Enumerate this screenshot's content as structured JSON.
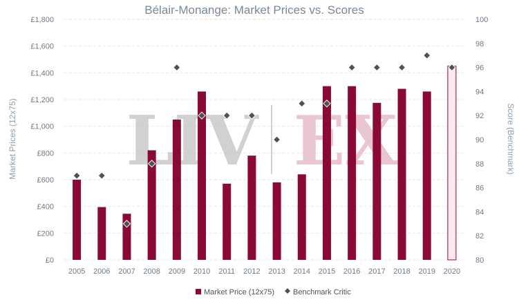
{
  "chart_data": {
    "type": "bar",
    "title": "Bélair-Monange: Market Prices vs. Scores",
    "categories": [
      "2005",
      "2006",
      "2007",
      "2008",
      "2009",
      "2010",
      "2011",
      "2012",
      "2013",
      "2014",
      "2015",
      "2016",
      "2017",
      "2018",
      "2019",
      "2020"
    ],
    "series": [
      {
        "name": "Market Price (12x75)",
        "kind": "bar",
        "axis": "left",
        "values": [
          600,
          395,
          345,
          820,
          1050,
          1260,
          570,
          780,
          580,
          640,
          1300,
          1300,
          1175,
          1280,
          1260,
          1450
        ]
      },
      {
        "name": "Benchmark Critic",
        "kind": "scatter",
        "axis": "right",
        "values": [
          87,
          87,
          83,
          88,
          96,
          92,
          92,
          92,
          90,
          93,
          93,
          96,
          96,
          96,
          97,
          96
        ]
      }
    ],
    "highlighted_category": "2020",
    "ylabel": "Market Prices (12x75)",
    "y2label": "Score (Benchmark)",
    "ylim": [
      0,
      1800
    ],
    "y_ticks": [
      "£0",
      "£200",
      "£400",
      "£600",
      "£800",
      "£1,000",
      "£1,200",
      "£1,400",
      "£1,600",
      "£1,800"
    ],
    "y2lim": [
      80,
      100
    ],
    "y2_ticks": [
      "80",
      "82",
      "84",
      "86",
      "88",
      "90",
      "92",
      "94",
      "96",
      "98",
      "100"
    ],
    "grid": true,
    "legend": "bottom-center",
    "watermark": {
      "left": "LIV",
      "right": "EX"
    },
    "colors": {
      "bar": "#8b0a35",
      "bar_highlight_fill": "#fbe9ee",
      "marker": "#4b5259",
      "marker_outline": "#ffffff",
      "watermark_left": "#c2c2c2",
      "watermark_right": "#e3b3c1"
    }
  }
}
